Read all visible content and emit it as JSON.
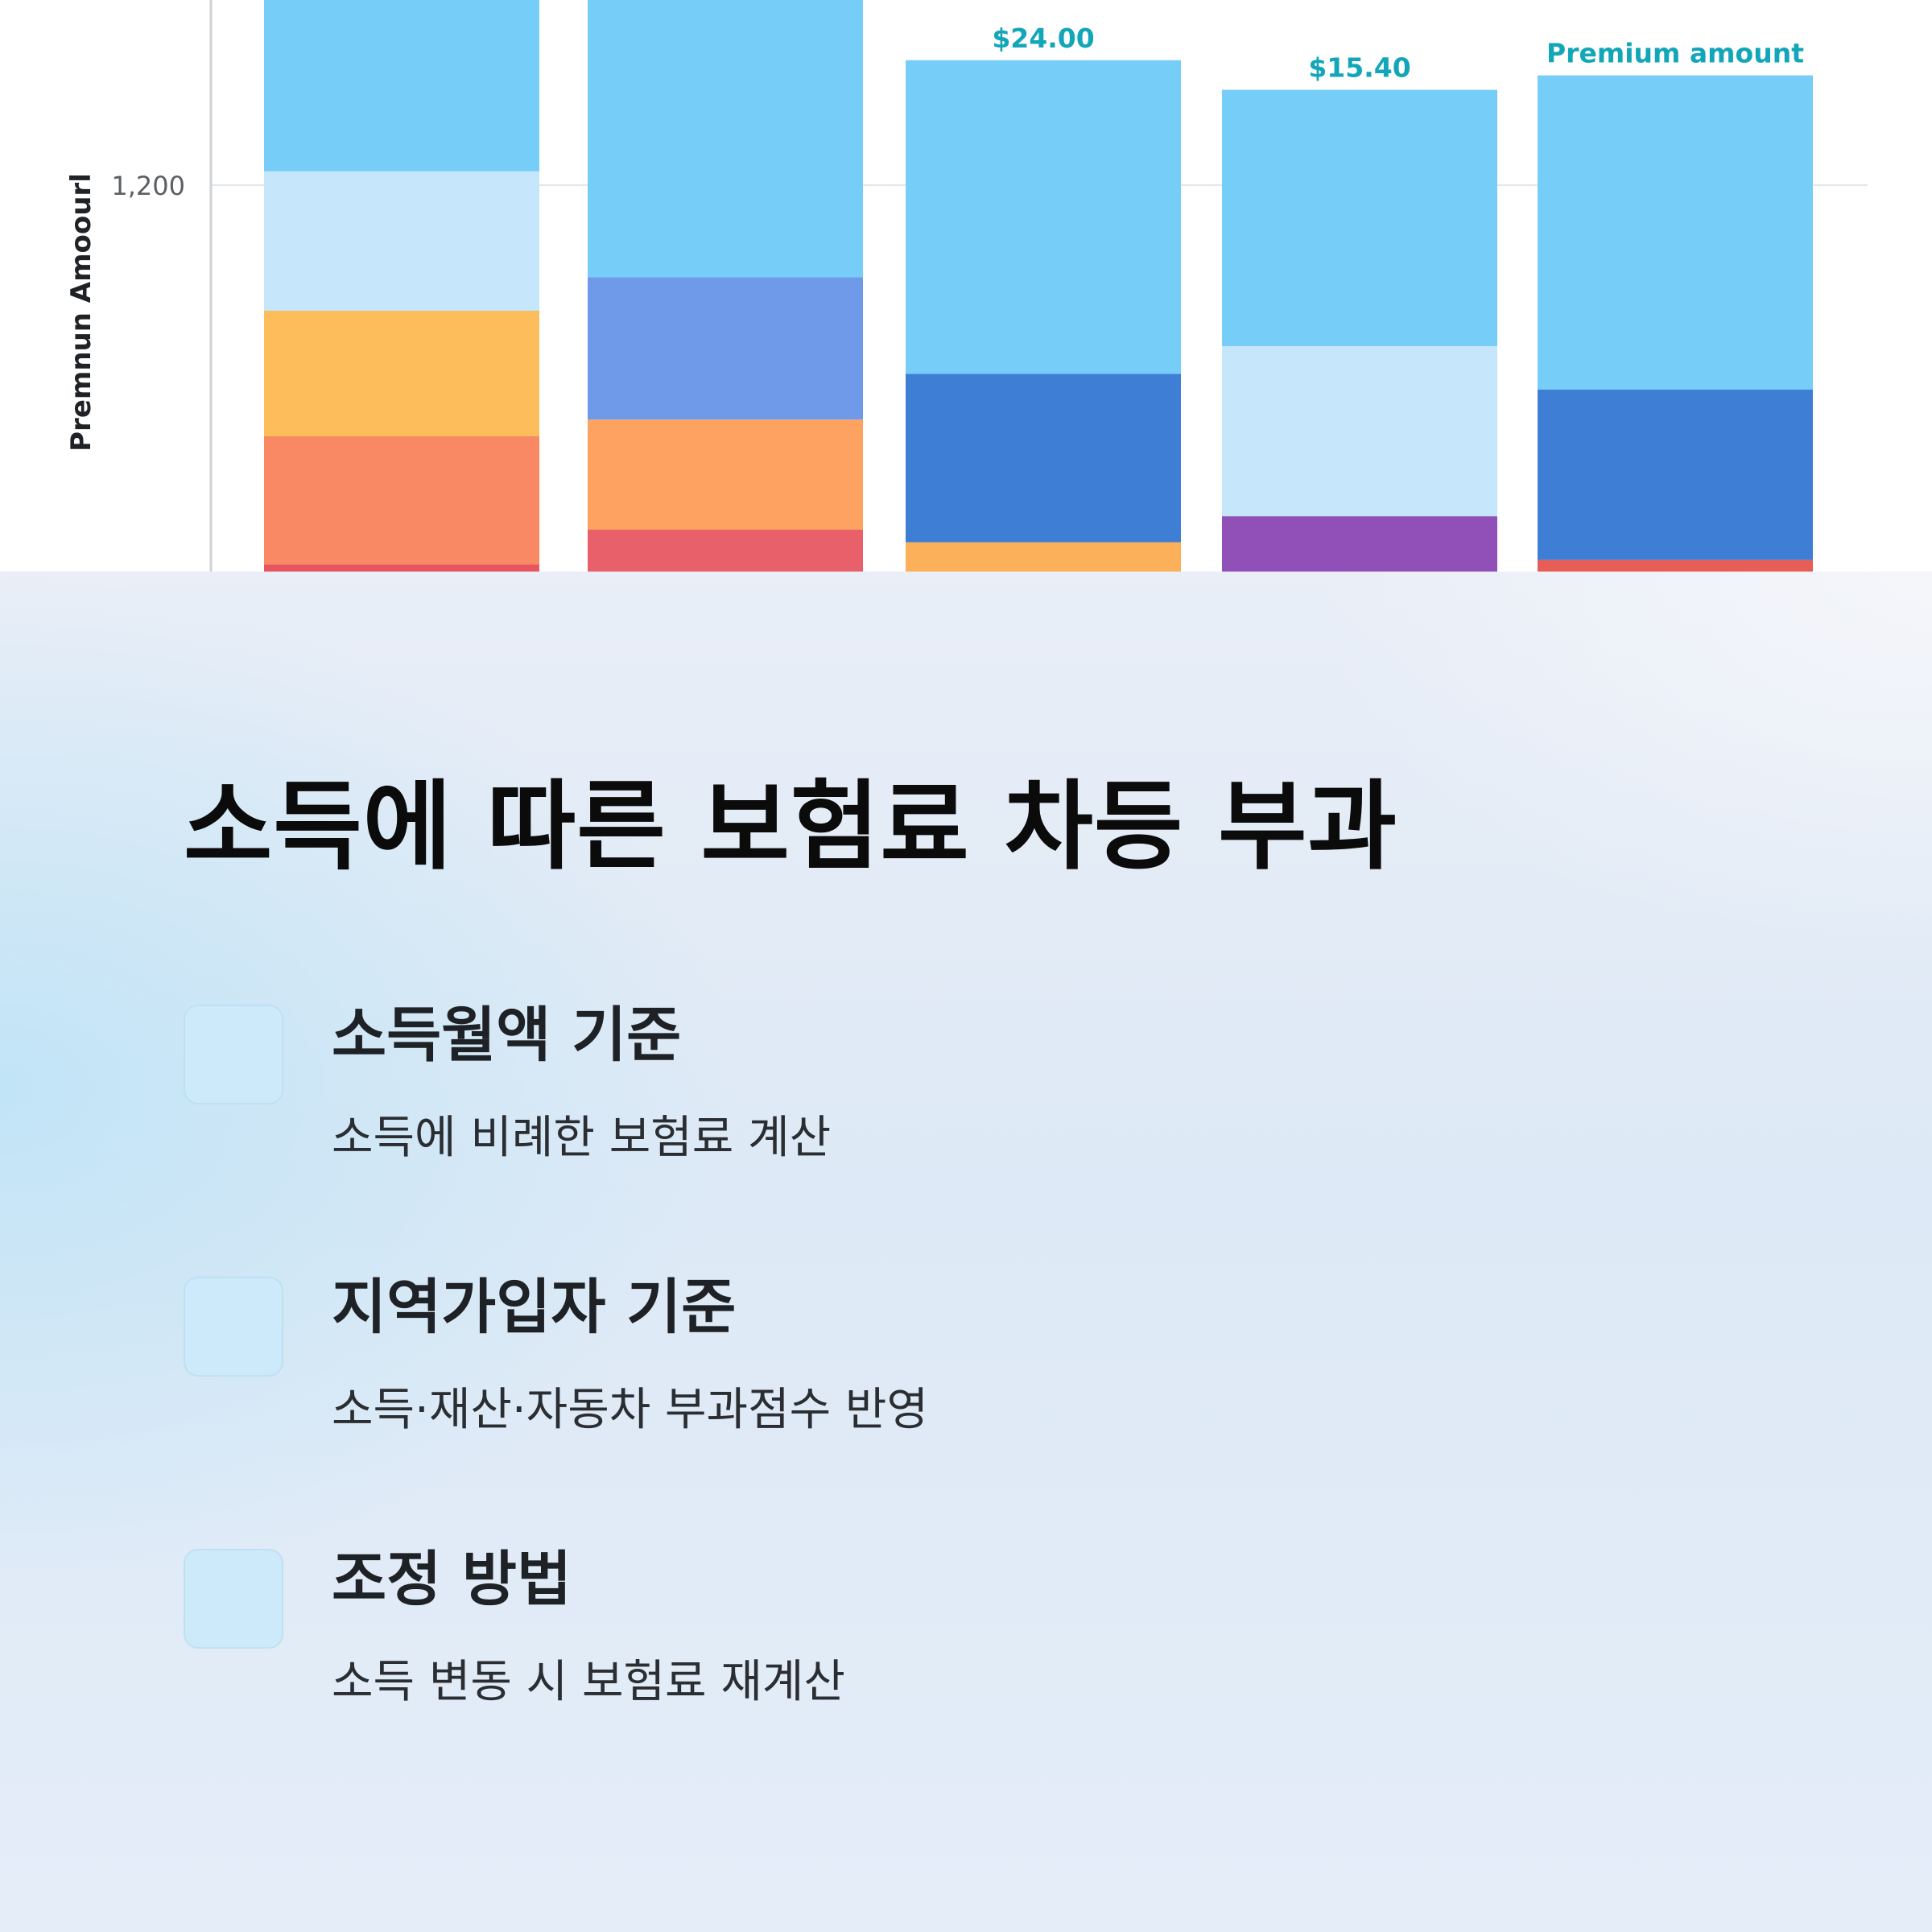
{
  "chart_data": {
    "type": "bar",
    "stacked": true,
    "ylabel": "Premnun Amoourl",
    "y_ticks": [
      "1,200"
    ],
    "gridlines": true,
    "bars": [
      {
        "label": "",
        "segments": [
          {
            "value": 22,
            "color": "#e8555e"
          },
          {
            "value": 398,
            "color": "#f98865"
          },
          {
            "value": 390,
            "color": "#fdbd5b"
          },
          {
            "value": 433,
            "color": "#c5e6fb"
          },
          {
            "value": 535,
            "color": "#76cdf8"
          }
        ]
      },
      {
        "label": "",
        "segments": [
          {
            "value": 130,
            "color": "#e8606a"
          },
          {
            "value": 342,
            "color": "#fda260"
          },
          {
            "value": 442,
            "color": "#6f9aea"
          },
          {
            "value": 864,
            "color": "#76cdf8"
          }
        ]
      },
      {
        "label": "$24.00",
        "segments": [
          {
            "value": 91,
            "color": "#fcb05a"
          },
          {
            "value": 523,
            "color": "#3e7fd5"
          },
          {
            "value": 974,
            "color": "#76cdf8"
          }
        ]
      },
      {
        "label": "$15.40",
        "segments": [
          {
            "value": 172,
            "color": "#9050b8"
          },
          {
            "value": 528,
            "color": "#c5e6fb"
          },
          {
            "value": 796,
            "color": "#76cdf8"
          }
        ]
      },
      {
        "label": "Premium amount",
        "segments": [
          {
            "value": 36,
            "color": "#e85d55"
          },
          {
            "value": 529,
            "color": "#3e7fd5"
          },
          {
            "value": 976,
            "color": "#76cdf8"
          }
        ]
      }
    ],
    "axis_label_color": "#202326",
    "tick_color": "#5c5f63",
    "value_label_color": "#12a6b8"
  },
  "content": {
    "title": "소득에 따른 보험료 차등 부과",
    "features": [
      {
        "heading": "소득월액 기준",
        "description": "소득에 비례한 보험료 계산"
      },
      {
        "heading": "지역가입자 기준",
        "description": "소득·재산·자동차 부과점수 반영"
      },
      {
        "heading": "조정 방법",
        "description": "소득 변동 시 보험료 재계산"
      }
    ]
  }
}
